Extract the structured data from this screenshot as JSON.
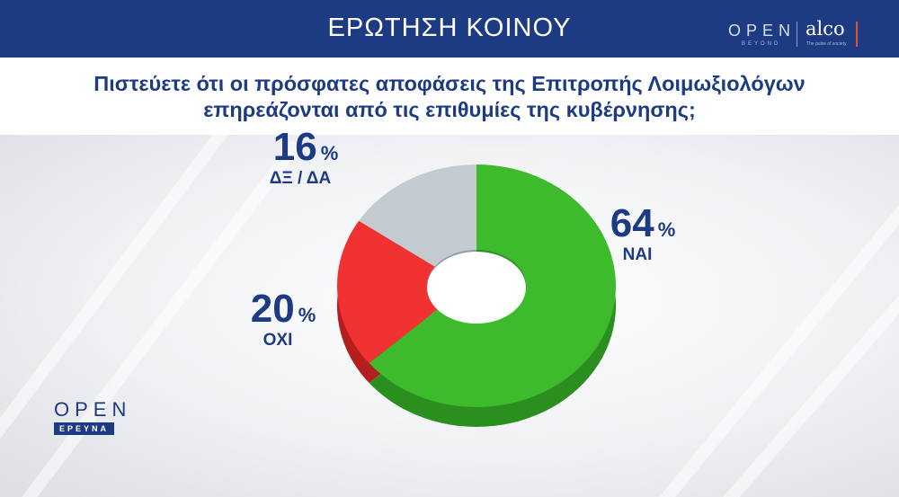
{
  "header": {
    "title": "ΕΡΩΤΗΣΗ ΚΟΙΝΟΥ"
  },
  "logos": {
    "open_top": "OPEN",
    "open_top_sub": "BEYOND",
    "alco": "alco",
    "alco_tag": "The pulse of society",
    "open_left": "OPEN",
    "open_left_tag": "ΕΡΕΥΝΑ"
  },
  "question": {
    "line1": "Πιστεύετε ότι οι πρόσφατες αποφάσεις της Επιτροπής Λοιμωξιολόγων",
    "line2": "επηρεάζονται από τις επιθυμίες της κυβέρνησης;"
  },
  "colors": {
    "brand": "#1d3b82",
    "accent_bar": "#e1542a"
  },
  "chart_data": {
    "type": "pie",
    "categories": [
      "ΝΑΙ",
      "ΟΧΙ",
      "ΔΞ / ΔΑ"
    ],
    "values": [
      64,
      20,
      16
    ],
    "unit": "%",
    "colors": [
      "#3dbb2c",
      "#f03232",
      "#c3cbd0"
    ],
    "side_colors": [
      "#2a8f1f",
      "#b51e1e",
      "#939ca2"
    ],
    "style": "3d-donut",
    "legend": "none"
  }
}
